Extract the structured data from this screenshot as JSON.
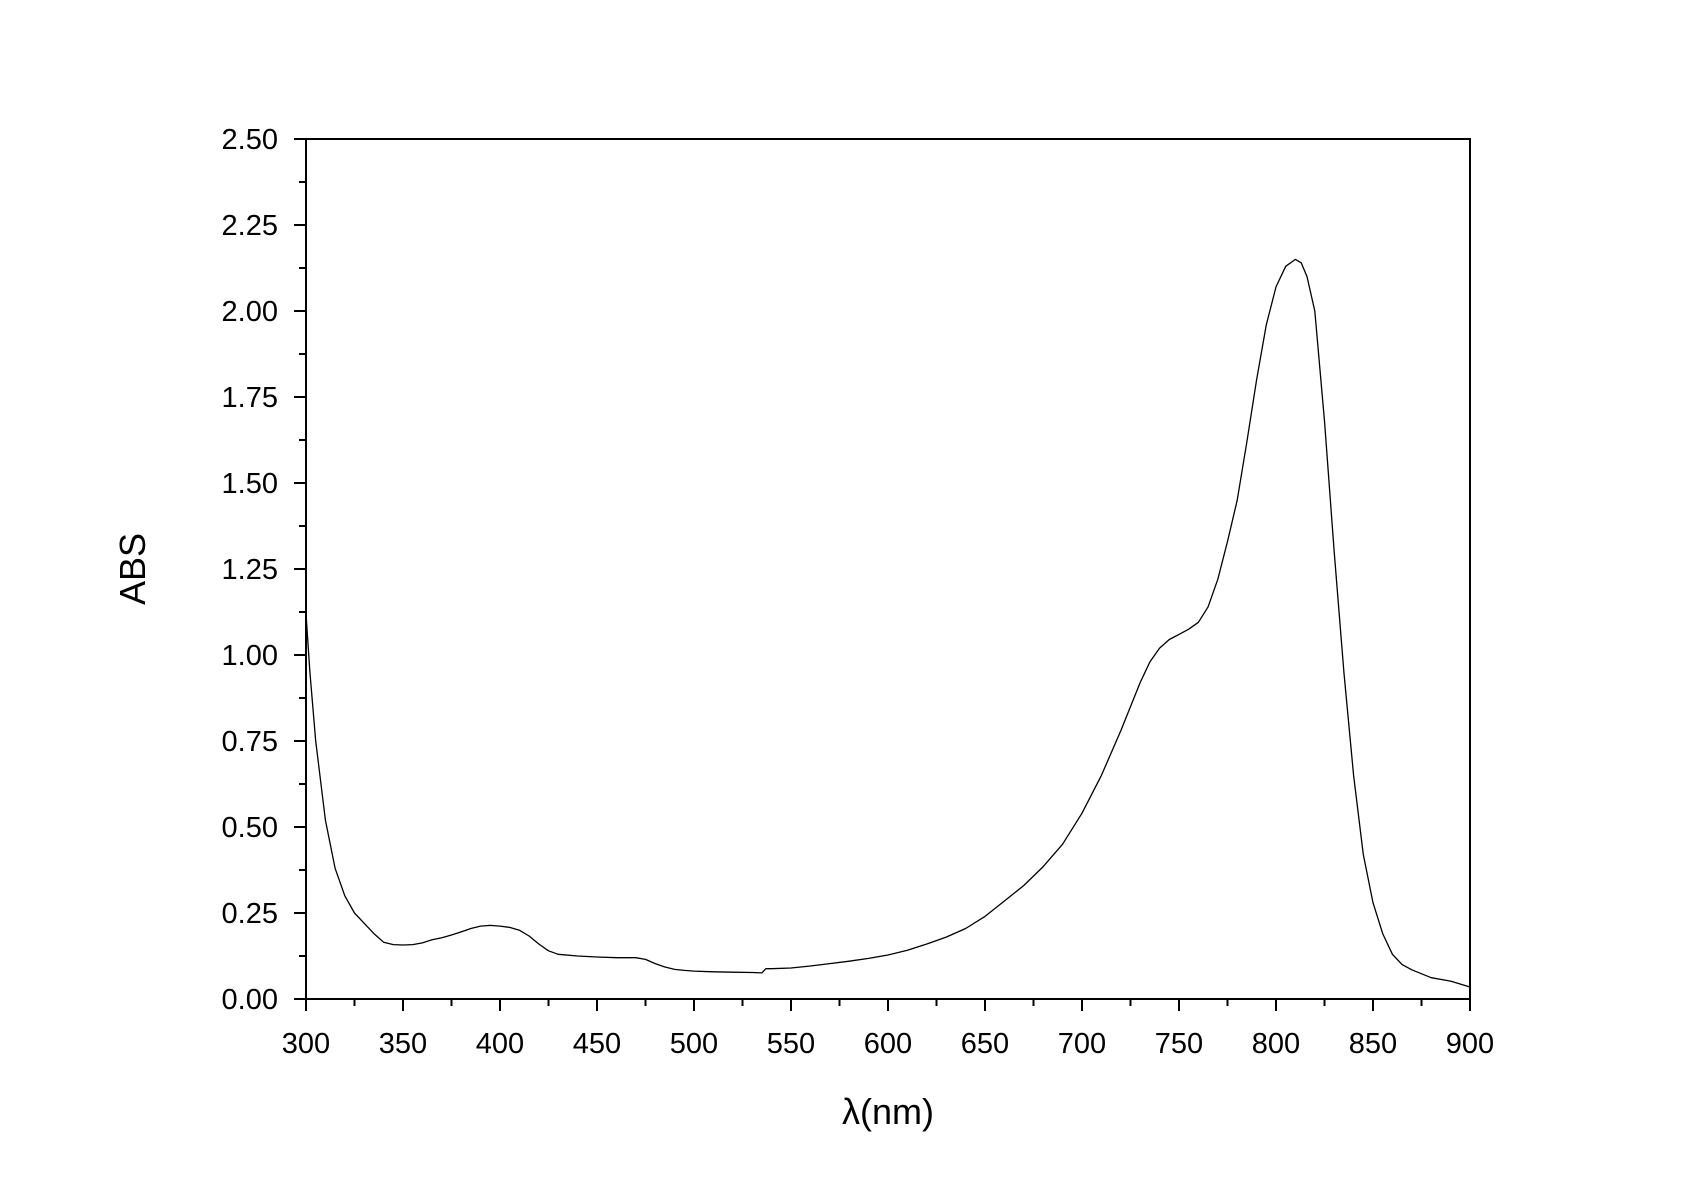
{
  "chart_data": {
    "type": "line",
    "title": "",
    "xlabel": "λ(nm)",
    "ylabel": "ABS",
    "xlim": [
      300,
      900
    ],
    "ylim": [
      0,
      2.5
    ],
    "x_ticks": [
      "300",
      "350",
      "400",
      "450",
      "500",
      "550",
      "600",
      "650",
      "700",
      "750",
      "800",
      "850",
      "900"
    ],
    "y_ticks": [
      "0.00",
      "0.25",
      "0.50",
      "0.75",
      "1.00",
      "1.25",
      "1.50",
      "1.75",
      "2.00",
      "2.25",
      "2.50"
    ],
    "grid": false,
    "legend": "none",
    "line_color": "#000000",
    "series": [
      {
        "x": [
          300,
          302,
          305,
          310,
          315,
          320,
          325,
          330,
          335,
          340,
          345,
          350,
          355,
          360,
          365,
          370,
          375,
          380,
          385,
          390,
          395,
          400,
          405,
          410,
          415,
          420,
          425,
          430,
          440,
          450,
          460,
          470,
          475,
          480,
          485,
          490,
          495,
          500,
          510,
          520,
          530,
          535,
          537,
          540,
          550,
          560,
          570,
          580,
          590,
          600,
          610,
          620,
          630,
          640,
          650,
          660,
          670,
          680,
          690,
          700,
          710,
          720,
          730,
          735,
          740,
          745,
          750,
          755,
          760,
          765,
          770,
          775,
          780,
          785,
          790,
          795,
          800,
          805,
          810,
          813,
          816,
          820,
          825,
          830,
          835,
          840,
          845,
          850,
          855,
          860,
          865,
          870,
          880,
          890,
          900
        ],
        "y": [
          1.12,
          0.95,
          0.75,
          0.52,
          0.38,
          0.3,
          0.25,
          0.22,
          0.19,
          0.165,
          0.158,
          0.157,
          0.158,
          0.163,
          0.172,
          0.178,
          0.186,
          0.195,
          0.205,
          0.212,
          0.214,
          0.212,
          0.208,
          0.2,
          0.183,
          0.16,
          0.14,
          0.13,
          0.125,
          0.122,
          0.12,
          0.12,
          0.115,
          0.103,
          0.093,
          0.086,
          0.083,
          0.081,
          0.079,
          0.078,
          0.077,
          0.076,
          0.088,
          0.088,
          0.09,
          0.096,
          0.103,
          0.11,
          0.118,
          0.128,
          0.142,
          0.16,
          0.18,
          0.205,
          0.24,
          0.285,
          0.33,
          0.385,
          0.45,
          0.54,
          0.65,
          0.78,
          0.92,
          0.98,
          1.02,
          1.045,
          1.06,
          1.075,
          1.095,
          1.14,
          1.22,
          1.33,
          1.45,
          1.62,
          1.8,
          1.96,
          2.07,
          2.13,
          2.15,
          2.14,
          2.1,
          2.0,
          1.68,
          1.3,
          0.95,
          0.65,
          0.42,
          0.28,
          0.19,
          0.13,
          0.1,
          0.085,
          0.062,
          0.052,
          0.035
        ]
      }
    ]
  }
}
